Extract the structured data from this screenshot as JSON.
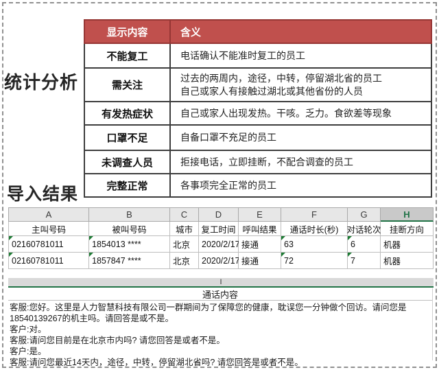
{
  "stat_section": {
    "title": "统计分析",
    "legend": {
      "headers": {
        "display": "显示内容",
        "meaning": "含义"
      },
      "rows": [
        {
          "label": "不能复工",
          "meaning": "电话确认不能准时复工的员工"
        },
        {
          "label": "需关注",
          "meaning": "过去的两周内，途径，中转，停留湖北省的员工\n自己或家人有接触过湖北或其他省份的人员"
        },
        {
          "label": "有发热症状",
          "meaning": "自己或家人出现发热。干咳。乏力。食欲差等现象"
        },
        {
          "label": "口罩不足",
          "meaning": "自备口罩不充足的员工"
        },
        {
          "label": "未调查人员",
          "meaning": "拒接电话，立即挂断，不配合调查的员工"
        },
        {
          "label": "完整正常",
          "meaning": "各事项完全正常的员工"
        }
      ]
    }
  },
  "import_section": {
    "title": "导入结果",
    "sheet": {
      "column_letters": [
        "A",
        "B",
        "C",
        "D",
        "E",
        "F",
        "G",
        "H"
      ],
      "selected_column": "H",
      "headers": [
        "主叫号码",
        "被叫号码",
        "城市",
        "复工时间",
        "呼叫结果",
        "通话时长(秒)",
        "对话轮次",
        "挂断方向"
      ],
      "rows": [
        [
          "02160781011",
          "1854013 ****",
          "北京",
          "2020/2/17",
          "接通",
          "63",
          "6",
          "机器"
        ],
        [
          "02160781011",
          "1857847 ****",
          "北京",
          "2020/2/17",
          "接通",
          "72",
          "7",
          "机器"
        ]
      ]
    },
    "call_panel": {
      "column_letter": "I",
      "title": "通话内容",
      "lines": [
        "客服:您好。这里是人力智慧科技有限公司一群期间为了保障您的健康，耽误您一分钟做个回访。请问您是18540139267的机主吗。请回答是或不是。",
        "客户:对。",
        "客服:请问您目前是在北京市内吗? 请您回答是或者不是。",
        "客户:是。"
      ],
      "truncated_line": "客服:请问您最近14天内，途径，中转，停留湖北省吗? 请您回答是或者不是。"
    }
  },
  "colors": {
    "header_red": "#c0504d",
    "header_red_border": "#963634",
    "excel_green": "#217346",
    "flag_green": "#1d7b34"
  }
}
